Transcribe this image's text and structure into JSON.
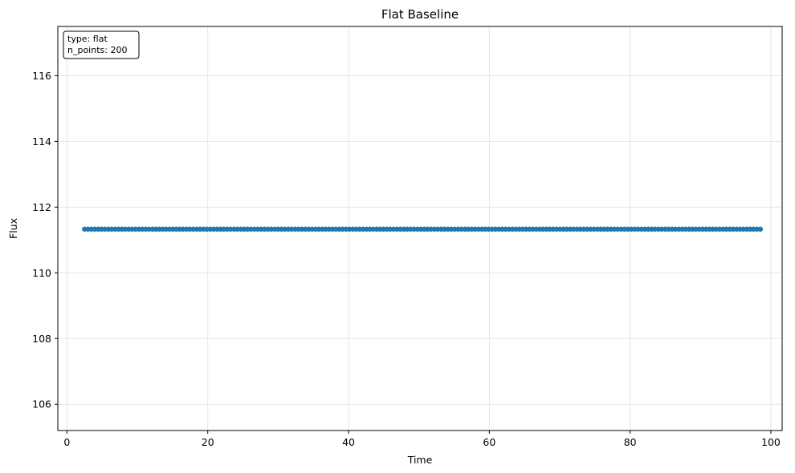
{
  "chart_data": {
    "type": "scatter",
    "title": "Flat Baseline",
    "xlabel": "Time",
    "ylabel": "Flux",
    "xlim": [
      -1.3,
      101.6
    ],
    "ylim": [
      105.2,
      117.5
    ],
    "xticks": [
      0,
      20,
      40,
      60,
      80,
      100
    ],
    "yticks": [
      106,
      108,
      110,
      112,
      114,
      116
    ],
    "grid": true,
    "annotation": {
      "lines": [
        "type: flat",
        "n_points: 200"
      ],
      "placement": "top-left"
    },
    "series": [
      {
        "x_start": 2.5,
        "x_end": 98.5,
        "n_points": 200,
        "y_value": 111.33,
        "color": "#1f77b4"
      }
    ]
  }
}
